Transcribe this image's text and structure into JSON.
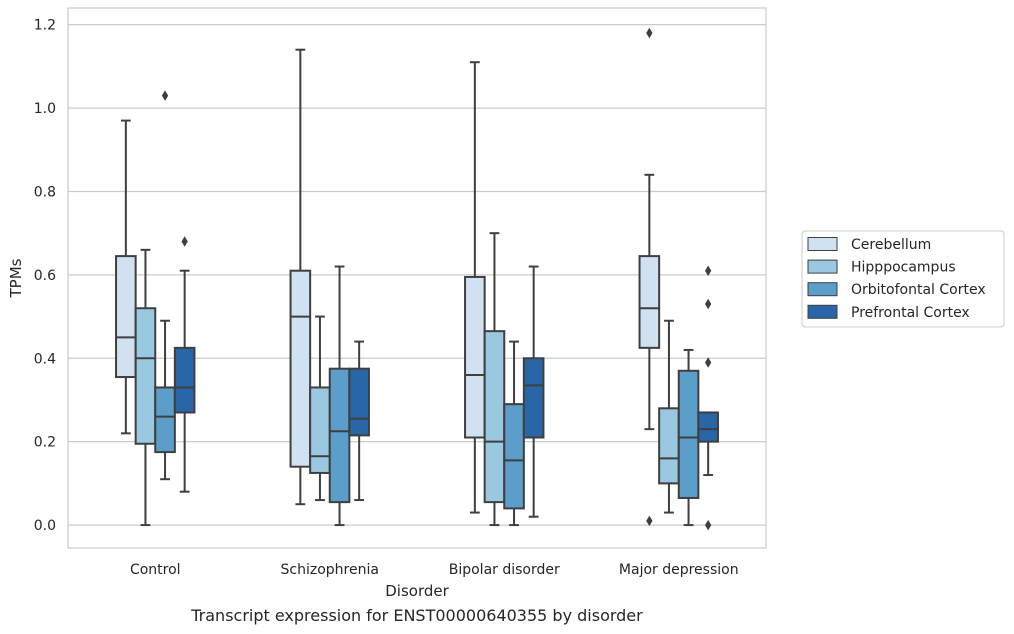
{
  "caption": "Transcript expression for ENST00000640355 by disorder",
  "chart_data": {
    "type": "box",
    "xlabel": "Disorder",
    "ylabel": "TPMs",
    "ylim": [
      -0.055,
      1.24
    ],
    "yticks": [
      "0.0",
      "0.2",
      "0.4",
      "0.6",
      "0.8",
      "1.0",
      "1.2"
    ],
    "grid": "horizontal",
    "legend_position": "right",
    "categories": [
      "Control",
      "Schizophrenia",
      "Bipolar disorder",
      "Major depression"
    ],
    "series": [
      {
        "name": "Cerebellum",
        "color": "#d0e1f2",
        "boxes": [
          {
            "whislo": 0.22,
            "q1": 0.355,
            "med": 0.45,
            "q3": 0.645,
            "whishi": 0.97,
            "fliers": []
          },
          {
            "whislo": 0.05,
            "q1": 0.14,
            "med": 0.5,
            "q3": 0.61,
            "whishi": 1.14,
            "fliers": []
          },
          {
            "whislo": 0.03,
            "q1": 0.21,
            "med": 0.36,
            "q3": 0.595,
            "whishi": 1.11,
            "fliers": []
          },
          {
            "whislo": 0.23,
            "q1": 0.425,
            "med": 0.52,
            "q3": 0.645,
            "whishi": 0.84,
            "fliers": [
              0.01,
              1.18
            ]
          }
        ]
      },
      {
        "name": "Hipppocampus",
        "color": "#9ac8e0",
        "boxes": [
          {
            "whislo": 0.0,
            "q1": 0.195,
            "med": 0.4,
            "q3": 0.52,
            "whishi": 0.66,
            "fliers": []
          },
          {
            "whislo": 0.06,
            "q1": 0.125,
            "med": 0.165,
            "q3": 0.33,
            "whishi": 0.5,
            "fliers": []
          },
          {
            "whislo": 0.0,
            "q1": 0.055,
            "med": 0.2,
            "q3": 0.465,
            "whishi": 0.7,
            "fliers": []
          },
          {
            "whislo": 0.03,
            "q1": 0.1,
            "med": 0.16,
            "q3": 0.28,
            "whishi": 0.49,
            "fliers": []
          }
        ]
      },
      {
        "name": "Orbitofontal Cortex",
        "color": "#5a9ec9",
        "boxes": [
          {
            "whislo": 0.11,
            "q1": 0.175,
            "med": 0.26,
            "q3": 0.33,
            "whishi": 0.49,
            "fliers": [
              1.03
            ]
          },
          {
            "whislo": 0.0,
            "q1": 0.055,
            "med": 0.225,
            "q3": 0.375,
            "whishi": 0.62,
            "fliers": []
          },
          {
            "whislo": 0.0,
            "q1": 0.04,
            "med": 0.155,
            "q3": 0.29,
            "whishi": 0.44,
            "fliers": []
          },
          {
            "whislo": 0.0,
            "q1": 0.065,
            "med": 0.21,
            "q3": 0.37,
            "whishi": 0.42,
            "fliers": []
          }
        ]
      },
      {
        "name": "Prefrontal Cortex",
        "color": "#2866a8",
        "boxes": [
          {
            "whislo": 0.08,
            "q1": 0.27,
            "med": 0.33,
            "q3": 0.425,
            "whishi": 0.61,
            "fliers": [
              0.68
            ]
          },
          {
            "whislo": 0.06,
            "q1": 0.215,
            "med": 0.255,
            "q3": 0.375,
            "whishi": 0.44,
            "fliers": []
          },
          {
            "whislo": 0.02,
            "q1": 0.21,
            "med": 0.335,
            "q3": 0.4,
            "whishi": 0.62,
            "fliers": []
          },
          {
            "whislo": 0.12,
            "q1": 0.2,
            "med": 0.23,
            "q3": 0.27,
            "whishi": 0.27,
            "fliers": [
              0.0,
              0.39,
              0.53,
              0.61
            ]
          }
        ]
      }
    ]
  }
}
